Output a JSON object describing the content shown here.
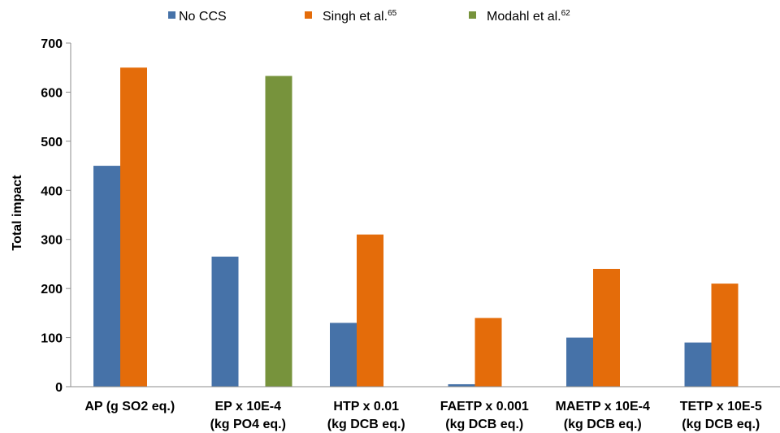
{
  "chart_data": {
    "type": "bar",
    "title": "",
    "xlabel": "",
    "ylabel": "Total impact",
    "ylim": [
      0,
      700
    ],
    "yticks": [
      0,
      100,
      200,
      300,
      400,
      500,
      600,
      700
    ],
    "grid": false,
    "legend_position": "top",
    "categories": [
      [
        "AP (g SO2 eq.)"
      ],
      [
        "EP x 10E-4",
        "(kg PO4 eq.)"
      ],
      [
        "HTP x 0.01",
        "(kg DCB eq.)"
      ],
      [
        "FAETP x 0.001",
        "(kg DCB eq.)"
      ],
      [
        "MAETP x 10E-4",
        "(kg DCB eq.)"
      ],
      [
        "TETP x 10E-5",
        "(kg DCB eq.)"
      ]
    ],
    "series": [
      {
        "name": "No CCS",
        "superscript": "",
        "color": "#4672a8",
        "values": [
          450,
          265,
          130,
          5,
          100,
          90
        ]
      },
      {
        "name": "Singh et al.",
        "superscript": "65",
        "color": "#e46c0a",
        "values": [
          650,
          null,
          310,
          140,
          240,
          210
        ]
      },
      {
        "name": "Modahl et al.",
        "superscript": "62",
        "color": "#77933c",
        "values": [
          null,
          633,
          null,
          null,
          null,
          null
        ]
      }
    ]
  }
}
